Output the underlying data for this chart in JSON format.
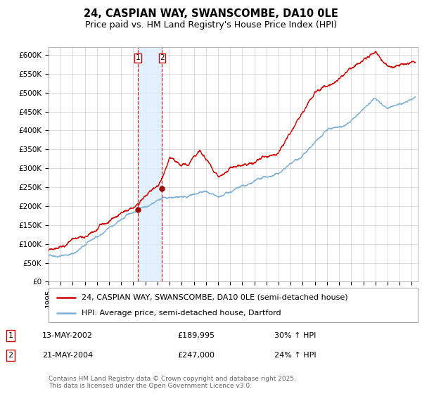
{
  "title": "24, CASPIAN WAY, SWANSCOMBE, DA10 0LE",
  "subtitle": "Price paid vs. HM Land Registry's House Price Index (HPI)",
  "ylabel_ticks": [
    "£0",
    "£50K",
    "£100K",
    "£150K",
    "£200K",
    "£250K",
    "£300K",
    "£350K",
    "£400K",
    "£450K",
    "£500K",
    "£550K",
    "£600K"
  ],
  "ytick_values": [
    0,
    50000,
    100000,
    150000,
    200000,
    250000,
    300000,
    350000,
    400000,
    450000,
    500000,
    550000,
    600000
  ],
  "ylim": [
    0,
    620000
  ],
  "xlim_start": 1995.0,
  "xlim_end": 2025.5,
  "sale1_date": 2002.36,
  "sale1_price": 189995,
  "sale1_label": "1",
  "sale2_date": 2004.38,
  "sale2_price": 247000,
  "sale2_label": "2",
  "hpi_line_color": "#7bafd4",
  "price_line_color": "#cc0000",
  "sale_marker_color": "#990000",
  "shade_color": "#ddeeff",
  "dashed_line_color": "#cc0000",
  "background_color": "#ffffff",
  "grid_color": "#cccccc",
  "legend_label_price": "24, CASPIAN WAY, SWANSCOMBE, DA10 0LE (semi-detached house)",
  "legend_label_hpi": "HPI: Average price, semi-detached house, Dartford",
  "footnote": "Contains HM Land Registry data © Crown copyright and database right 2025.\nThis data is licensed under the Open Government Licence v3.0.",
  "title_fontsize": 10.5,
  "subtitle_fontsize": 9,
  "tick_fontsize": 7.5,
  "legend_fontsize": 8,
  "annotation_fontsize": 8,
  "footnote_fontsize": 6.5
}
